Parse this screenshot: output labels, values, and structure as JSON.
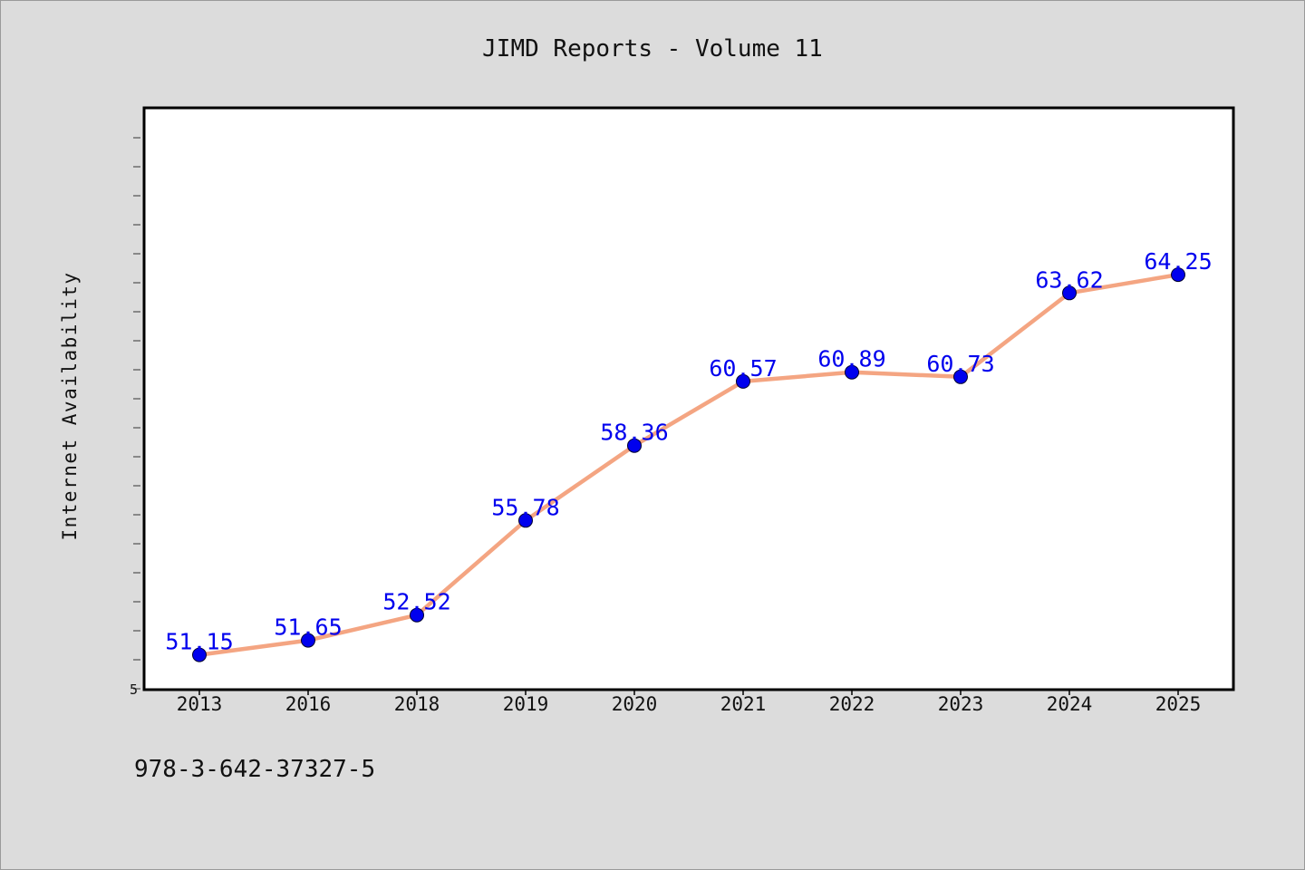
{
  "chart_data": {
    "type": "line",
    "title": "JIMD Reports - Volume 11",
    "xlabel": "",
    "ylabel": "Internet Availability",
    "categories": [
      "2013",
      "2016",
      "2018",
      "2019",
      "2020",
      "2021",
      "2022",
      "2023",
      "2024",
      "2025"
    ],
    "series": [
      {
        "values": [
          51.15,
          51.65,
          52.52,
          55.78,
          58.36,
          60.57,
          60.89,
          60.73,
          63.62,
          64.25
        ],
        "data_labels": [
          "51.15",
          "51.65",
          "52.52",
          "55.78",
          "58.36",
          "60.57",
          "60.89",
          "60.73",
          "63.62",
          "64.25"
        ]
      }
    ],
    "ylim": [
      49.95,
      70.0
    ],
    "y_tick_labels": [
      "5"
    ],
    "grid": false,
    "legend": false,
    "colors": {
      "line": "#f4a582",
      "marker": "#0000ee",
      "data_label": "#0000ee",
      "plot_bg": "#ffffff",
      "figure_bg": "#dcdcdc"
    }
  },
  "footer": {
    "code": "978-3-642-37327-5"
  }
}
